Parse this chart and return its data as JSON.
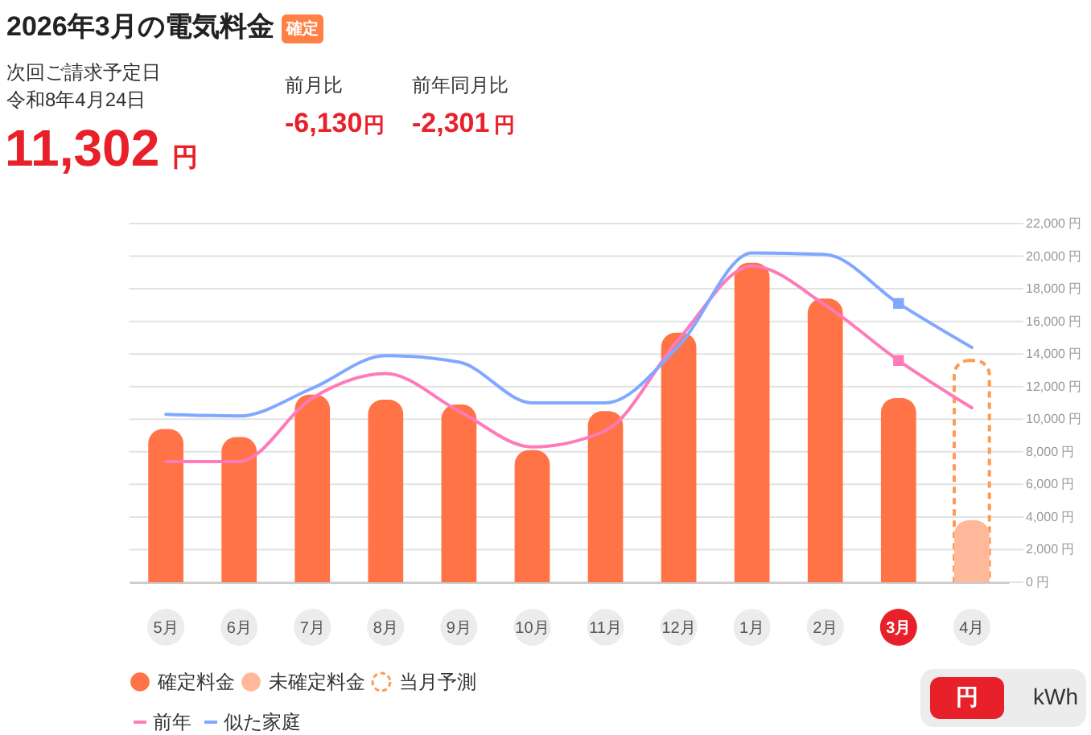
{
  "chart_data": {
    "type": "bar",
    "title": "2026年3月の電気料金",
    "annotations": [
      "確定",
      "次回ご請求予定日",
      "令和8年4月24日",
      "11,302",
      "円",
      "前月比",
      "-6,130",
      "円",
      "前年同月比",
      "-2,301",
      "円",
      "円",
      "kWh"
    ],
    "categories": [
      "5月",
      "6月",
      "7月",
      "8月",
      "9月",
      "10月",
      "11月",
      "12月",
      "1月",
      "2月",
      "3月",
      "4月"
    ],
    "series": [
      {
        "name": "確定料金",
        "color": "#ff7347",
        "values": [
          9400,
          8900,
          11500,
          11200,
          10900,
          8100,
          10500,
          15300,
          19600,
          17400,
          11302,
          null
        ]
      },
      {
        "name": "未確定料金",
        "color": "#ffb899",
        "values": [
          null,
          null,
          null,
          null,
          null,
          null,
          null,
          null,
          null,
          null,
          null,
          3800
        ]
      },
      {
        "name": "当月予測",
        "color": "#ff9a55",
        "line_style": "dashed",
        "values": [
          null,
          null,
          null,
          null,
          null,
          null,
          null,
          null,
          null,
          null,
          null,
          13600
        ]
      },
      {
        "name": "前年",
        "type": "line",
        "color": "#ff7ab8",
        "values": [
          7400,
          7400,
          11300,
          12800,
          10500,
          8300,
          9300,
          14900,
          19400,
          17000,
          13600,
          10700
        ]
      },
      {
        "name": "似た家庭",
        "type": "line",
        "color": "#80a8ff",
        "values": [
          10300,
          10200,
          11900,
          13900,
          13500,
          11000,
          11000,
          14500,
          20200,
          20100,
          17100,
          14400
        ]
      },
      {
        "type": "scatter",
        "x": [
          "3月"
        ],
        "values": [
          13600
        ],
        "color": "#ff7ab8",
        "marker": "square"
      },
      {
        "type": "scatter",
        "x": [
          "3月"
        ],
        "values": [
          17100
        ],
        "color": "#80a8ff",
        "marker": "square"
      }
    ],
    "ylim": [
      0,
      22000
    ],
    "yticks": [
      {
        "value": 0,
        "label": "0 円"
      },
      {
        "value": 2000,
        "label": "2,000 円"
      },
      {
        "value": 4000,
        "label": "4,000 円"
      },
      {
        "value": 6000,
        "label": "6,000 円"
      },
      {
        "value": 8000,
        "label": "8,000 円"
      },
      {
        "value": 10000,
        "label": "10,000 円"
      },
      {
        "value": 12000,
        "label": "12,000 円"
      },
      {
        "value": 14000,
        "label": "14,000 円"
      },
      {
        "value": 16000,
        "label": "16,000 円"
      },
      {
        "value": 18000,
        "label": "18,000 円"
      },
      {
        "value": 20000,
        "label": "20,000 円"
      },
      {
        "value": 22000,
        "label": "22,000 円"
      }
    ],
    "grid": "y",
    "legend": "bottom left"
  }
}
